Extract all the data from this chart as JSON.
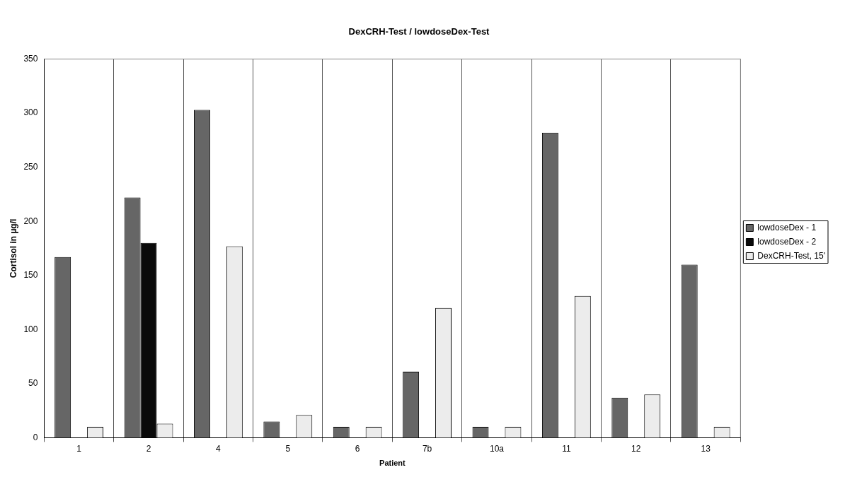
{
  "chart_data": {
    "type": "bar",
    "title": "DexCRH-Test / lowdoseDex-Test",
    "xlabel": "Patient",
    "ylabel": "Cortisol in µg/l",
    "categories": [
      "1",
      "2",
      "4",
      "5",
      "6",
      "7b",
      "10a",
      "11",
      "12",
      "13"
    ],
    "series": [
      {
        "name": "lowdoseDex - 1",
        "color": "#666666",
        "values": [
          167,
          222,
          303,
          15,
          10,
          61,
          10,
          282,
          37,
          160
        ]
      },
      {
        "name": "lowdoseDex - 2",
        "color": "#0a0a0a",
        "values": [
          null,
          180,
          null,
          null,
          null,
          null,
          null,
          null,
          null,
          null
        ]
      },
      {
        "name": "DexCRH-Test, 15'",
        "color": "#ececec",
        "values": [
          10,
          13,
          177,
          21,
          10,
          120,
          10,
          131,
          40,
          10
        ]
      }
    ],
    "ylim": [
      0,
      350
    ],
    "yticks": [
      0,
      50,
      100,
      150,
      200,
      250,
      300,
      350
    ],
    "grid": "x",
    "legend": "right"
  }
}
